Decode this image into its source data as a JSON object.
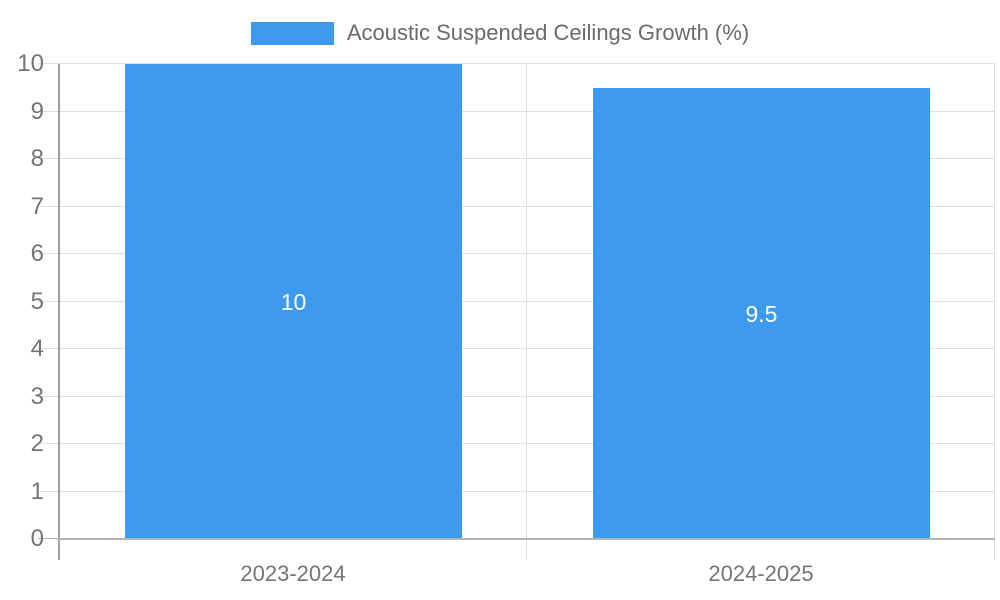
{
  "chart_data": {
    "type": "bar",
    "title": "",
    "legend": {
      "label": "Acoustic Suspended Ceilings Growth (%)",
      "position": "top"
    },
    "categories": [
      "2023-2024",
      "2024-2025"
    ],
    "series": [
      {
        "name": "Acoustic Suspended Ceilings Growth (%)",
        "values": [
          10,
          9.5
        ]
      }
    ],
    "value_labels": [
      "10",
      "9.5"
    ],
    "xlabel": "",
    "ylabel": "",
    "ylim": [
      0,
      10
    ],
    "yticks": [
      0,
      1,
      2,
      3,
      4,
      5,
      6,
      7,
      8,
      9,
      10
    ],
    "grid": true,
    "colors": {
      "bar": "#3d9aec",
      "grid": "#e0e0e0",
      "axis_line": "#9e9e9e",
      "zero_line": "#b3b3b3",
      "tick_label": "#757575",
      "value_label": "#ffffff",
      "legend_text": "#6b6b6b",
      "background": "#ffffff"
    }
  }
}
